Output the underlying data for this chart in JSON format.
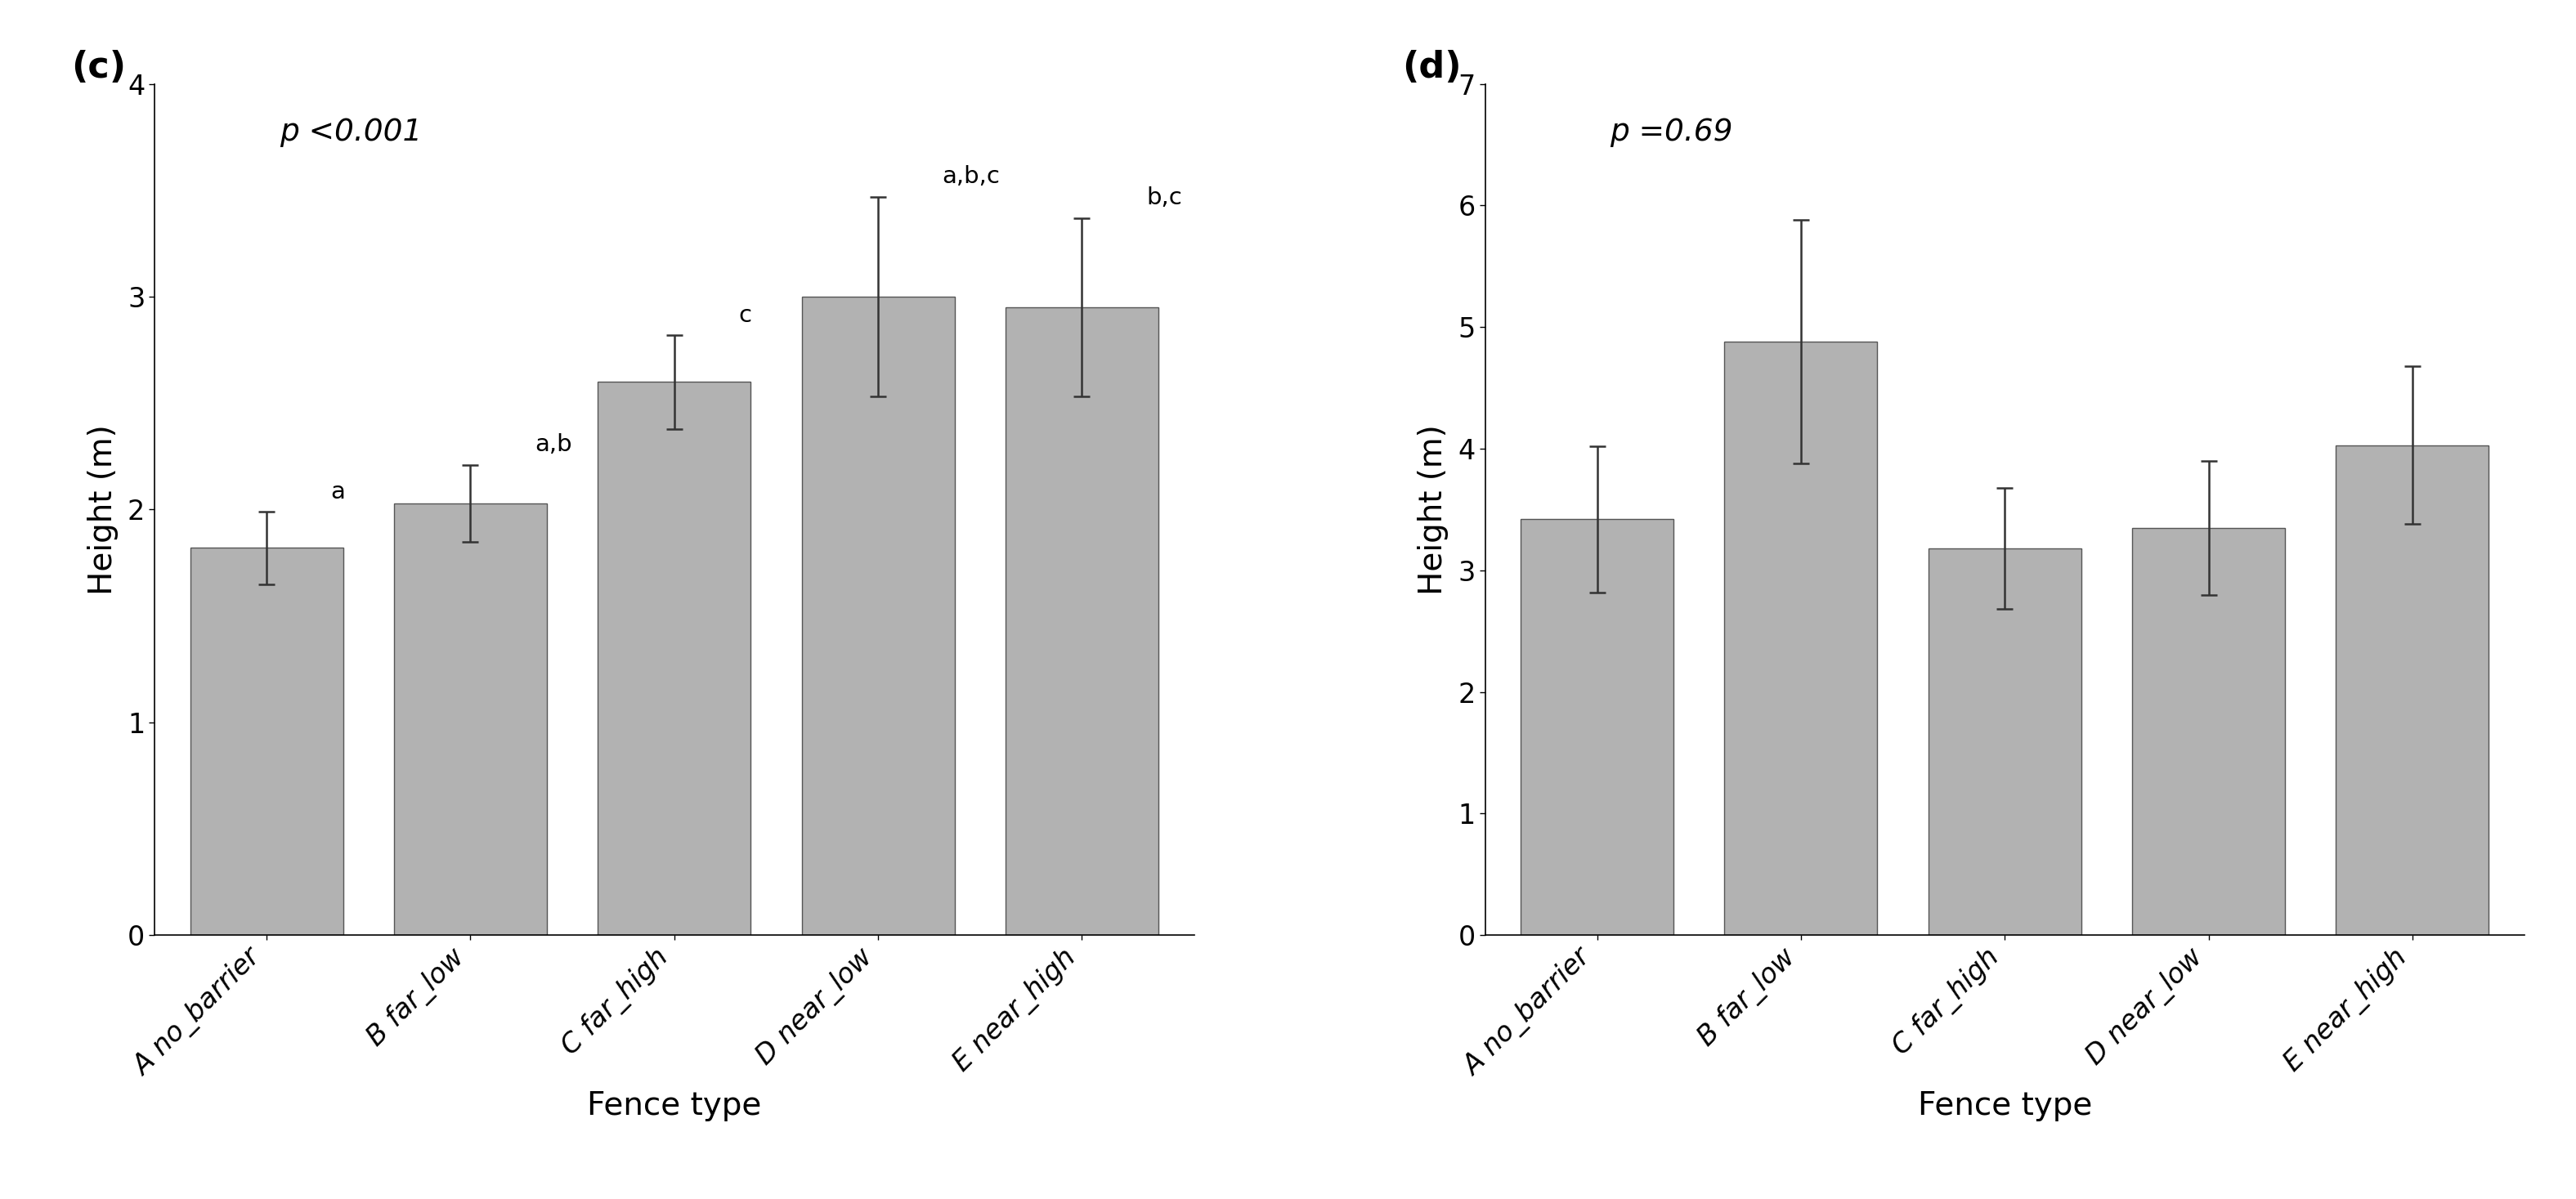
{
  "panel_c": {
    "title_label": "(c)",
    "p_text": "p <0.001",
    "categories": [
      "A no_barrier",
      "B far_low",
      "C far_high",
      "D near_low",
      "E near_high"
    ],
    "values": [
      1.82,
      2.03,
      2.6,
      3.0,
      2.95
    ],
    "errors": [
      0.17,
      0.18,
      0.22,
      0.47,
      0.42
    ],
    "sig_labels": [
      "a",
      "a,b",
      "c",
      "a,b,c",
      "b,c"
    ],
    "ylabel": "Height (m)",
    "xlabel": "Fence type",
    "ylim": [
      0,
      4
    ],
    "yticks": [
      0,
      1,
      2,
      3,
      4
    ]
  },
  "panel_d": {
    "title_label": "(d)",
    "p_text": "p =0.69",
    "categories": [
      "A no_barrier",
      "B far_low",
      "C far_high",
      "D near_low",
      "E near_high"
    ],
    "values": [
      3.42,
      4.88,
      3.18,
      3.35,
      4.03
    ],
    "errors": [
      0.6,
      1.0,
      0.5,
      0.55,
      0.65
    ],
    "sig_labels": [
      "",
      "",
      "",
      "",
      ""
    ],
    "ylabel": "Height (m)",
    "xlabel": "Fence type",
    "ylim": [
      0,
      7
    ],
    "yticks": [
      0,
      1,
      2,
      3,
      4,
      5,
      6,
      7
    ]
  },
  "bar_color": "#b2b2b2",
  "bar_edgecolor": "#555555",
  "error_color": "#333333",
  "background_color": "#ffffff",
  "panel_label_fontsize": 32,
  "label_fontsize": 28,
  "tick_fontsize": 24,
  "sig_fontsize": 21,
  "p_fontsize": 27
}
